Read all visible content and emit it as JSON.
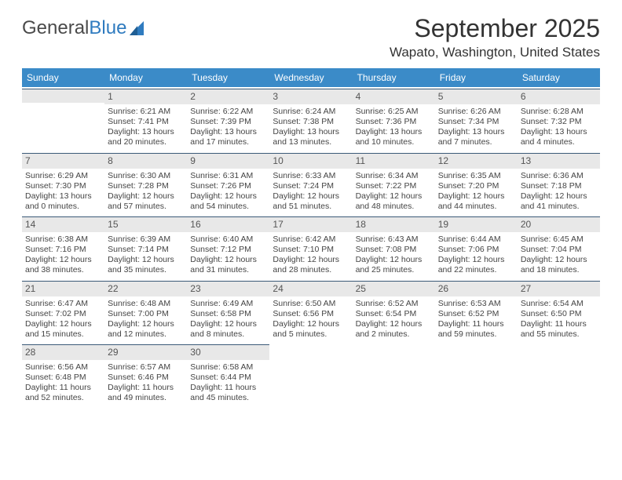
{
  "logo": {
    "text1": "General",
    "text2": "Blue"
  },
  "title": "September 2025",
  "location": "Wapato, Washington, United States",
  "colors": {
    "header_bg": "#3b8bc8",
    "header_text": "#ffffff",
    "daynum_bg": "#e8e8e8",
    "cell_border": "#3b5a78",
    "text": "#444444",
    "title_color": "#333333",
    "logo_gray": "#4a4a4a",
    "logo_blue": "#2f7bbf"
  },
  "dow": [
    "Sunday",
    "Monday",
    "Tuesday",
    "Wednesday",
    "Thursday",
    "Friday",
    "Saturday"
  ],
  "weeks": [
    [
      null,
      {
        "n": "1",
        "sr": "Sunrise: 6:21 AM",
        "ss": "Sunset: 7:41 PM",
        "dl": "Daylight: 13 hours and 20 minutes."
      },
      {
        "n": "2",
        "sr": "Sunrise: 6:22 AM",
        "ss": "Sunset: 7:39 PM",
        "dl": "Daylight: 13 hours and 17 minutes."
      },
      {
        "n": "3",
        "sr": "Sunrise: 6:24 AM",
        "ss": "Sunset: 7:38 PM",
        "dl": "Daylight: 13 hours and 13 minutes."
      },
      {
        "n": "4",
        "sr": "Sunrise: 6:25 AM",
        "ss": "Sunset: 7:36 PM",
        "dl": "Daylight: 13 hours and 10 minutes."
      },
      {
        "n": "5",
        "sr": "Sunrise: 6:26 AM",
        "ss": "Sunset: 7:34 PM",
        "dl": "Daylight: 13 hours and 7 minutes."
      },
      {
        "n": "6",
        "sr": "Sunrise: 6:28 AM",
        "ss": "Sunset: 7:32 PM",
        "dl": "Daylight: 13 hours and 4 minutes."
      }
    ],
    [
      {
        "n": "7",
        "sr": "Sunrise: 6:29 AM",
        "ss": "Sunset: 7:30 PM",
        "dl": "Daylight: 13 hours and 0 minutes."
      },
      {
        "n": "8",
        "sr": "Sunrise: 6:30 AM",
        "ss": "Sunset: 7:28 PM",
        "dl": "Daylight: 12 hours and 57 minutes."
      },
      {
        "n": "9",
        "sr": "Sunrise: 6:31 AM",
        "ss": "Sunset: 7:26 PM",
        "dl": "Daylight: 12 hours and 54 minutes."
      },
      {
        "n": "10",
        "sr": "Sunrise: 6:33 AM",
        "ss": "Sunset: 7:24 PM",
        "dl": "Daylight: 12 hours and 51 minutes."
      },
      {
        "n": "11",
        "sr": "Sunrise: 6:34 AM",
        "ss": "Sunset: 7:22 PM",
        "dl": "Daylight: 12 hours and 48 minutes."
      },
      {
        "n": "12",
        "sr": "Sunrise: 6:35 AM",
        "ss": "Sunset: 7:20 PM",
        "dl": "Daylight: 12 hours and 44 minutes."
      },
      {
        "n": "13",
        "sr": "Sunrise: 6:36 AM",
        "ss": "Sunset: 7:18 PM",
        "dl": "Daylight: 12 hours and 41 minutes."
      }
    ],
    [
      {
        "n": "14",
        "sr": "Sunrise: 6:38 AM",
        "ss": "Sunset: 7:16 PM",
        "dl": "Daylight: 12 hours and 38 minutes."
      },
      {
        "n": "15",
        "sr": "Sunrise: 6:39 AM",
        "ss": "Sunset: 7:14 PM",
        "dl": "Daylight: 12 hours and 35 minutes."
      },
      {
        "n": "16",
        "sr": "Sunrise: 6:40 AM",
        "ss": "Sunset: 7:12 PM",
        "dl": "Daylight: 12 hours and 31 minutes."
      },
      {
        "n": "17",
        "sr": "Sunrise: 6:42 AM",
        "ss": "Sunset: 7:10 PM",
        "dl": "Daylight: 12 hours and 28 minutes."
      },
      {
        "n": "18",
        "sr": "Sunrise: 6:43 AM",
        "ss": "Sunset: 7:08 PM",
        "dl": "Daylight: 12 hours and 25 minutes."
      },
      {
        "n": "19",
        "sr": "Sunrise: 6:44 AM",
        "ss": "Sunset: 7:06 PM",
        "dl": "Daylight: 12 hours and 22 minutes."
      },
      {
        "n": "20",
        "sr": "Sunrise: 6:45 AM",
        "ss": "Sunset: 7:04 PM",
        "dl": "Daylight: 12 hours and 18 minutes."
      }
    ],
    [
      {
        "n": "21",
        "sr": "Sunrise: 6:47 AM",
        "ss": "Sunset: 7:02 PM",
        "dl": "Daylight: 12 hours and 15 minutes."
      },
      {
        "n": "22",
        "sr": "Sunrise: 6:48 AM",
        "ss": "Sunset: 7:00 PM",
        "dl": "Daylight: 12 hours and 12 minutes."
      },
      {
        "n": "23",
        "sr": "Sunrise: 6:49 AM",
        "ss": "Sunset: 6:58 PM",
        "dl": "Daylight: 12 hours and 8 minutes."
      },
      {
        "n": "24",
        "sr": "Sunrise: 6:50 AM",
        "ss": "Sunset: 6:56 PM",
        "dl": "Daylight: 12 hours and 5 minutes."
      },
      {
        "n": "25",
        "sr": "Sunrise: 6:52 AM",
        "ss": "Sunset: 6:54 PM",
        "dl": "Daylight: 12 hours and 2 minutes."
      },
      {
        "n": "26",
        "sr": "Sunrise: 6:53 AM",
        "ss": "Sunset: 6:52 PM",
        "dl": "Daylight: 11 hours and 59 minutes."
      },
      {
        "n": "27",
        "sr": "Sunrise: 6:54 AM",
        "ss": "Sunset: 6:50 PM",
        "dl": "Daylight: 11 hours and 55 minutes."
      }
    ],
    [
      {
        "n": "28",
        "sr": "Sunrise: 6:56 AM",
        "ss": "Sunset: 6:48 PM",
        "dl": "Daylight: 11 hours and 52 minutes."
      },
      {
        "n": "29",
        "sr": "Sunrise: 6:57 AM",
        "ss": "Sunset: 6:46 PM",
        "dl": "Daylight: 11 hours and 49 minutes."
      },
      {
        "n": "30",
        "sr": "Sunrise: 6:58 AM",
        "ss": "Sunset: 6:44 PM",
        "dl": "Daylight: 11 hours and 45 minutes."
      },
      null,
      null,
      null,
      null
    ]
  ]
}
